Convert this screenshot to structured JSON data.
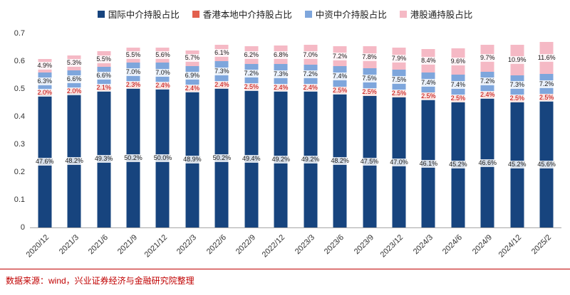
{
  "chart_data": {
    "type": "bar",
    "stacked": true,
    "title": "",
    "xlabel": "",
    "ylabel": "",
    "categories": [
      "2020/12",
      "2021/3",
      "2021/6",
      "2021/9",
      "2021/12",
      "2022/3",
      "2022/6",
      "2022/9",
      "2022/12",
      "2023/3",
      "2023/6",
      "2023/9",
      "2023/12",
      "2024/3",
      "2024/6",
      "2024/9",
      "2024/12",
      "2025/2"
    ],
    "series": [
      {
        "name": "国际中介持股占比",
        "color": "#17447E",
        "label_color": "#1a1a1a",
        "values": [
          47.6,
          48.2,
          49.3,
          50.2,
          50.0,
          48.9,
          50.2,
          49.4,
          49.2,
          49.2,
          48.2,
          47.5,
          47.0,
          46.1,
          45.2,
          46.6,
          45.2,
          45.6
        ]
      },
      {
        "name": "香港本地中介持股占比",
        "color": "#E2604E",
        "label_color": "#C00000",
        "values": [
          2.0,
          2.0,
          2.1,
          2.3,
          2.4,
          2.4,
          2.4,
          2.5,
          2.4,
          2.4,
          2.5,
          2.5,
          2.5,
          2.5,
          2.5,
          2.4,
          2.5,
          2.5
        ]
      },
      {
        "name": "中资中介持股占比",
        "color": "#7EA6DC",
        "label_color": "#1a1a1a",
        "values": [
          6.3,
          6.6,
          6.6,
          7.0,
          7.0,
          6.9,
          7.3,
          7.2,
          7.3,
          7.2,
          7.4,
          7.5,
          7.5,
          7.4,
          7.4,
          7.2,
          7.3,
          7.2
        ]
      },
      {
        "name": "港股通持股占比",
        "color": "#F5B9C5",
        "label_color": "#1a1a1a",
        "values": [
          4.9,
          5.3,
          5.5,
          5.5,
          5.6,
          5.7,
          6.1,
          6.2,
          6.8,
          7.0,
          7.2,
          7.8,
          7.9,
          8.4,
          9.6,
          9.7,
          10.9,
          11.6
        ]
      }
    ],
    "ylim": [
      0,
      0.7
    ],
    "ytick_labels": [
      "0",
      "0.1",
      "0.2",
      "0.3",
      "0.4",
      "0.5",
      "0.6",
      "0.7"
    ],
    "value_unit": "%",
    "values_are_percent_of_100": true,
    "legend_position": "top",
    "grid": false
  },
  "footer": {
    "source_text": "数据来源：wind，兴业证券经济与金融研究院整理",
    "color": "#C00000"
  }
}
